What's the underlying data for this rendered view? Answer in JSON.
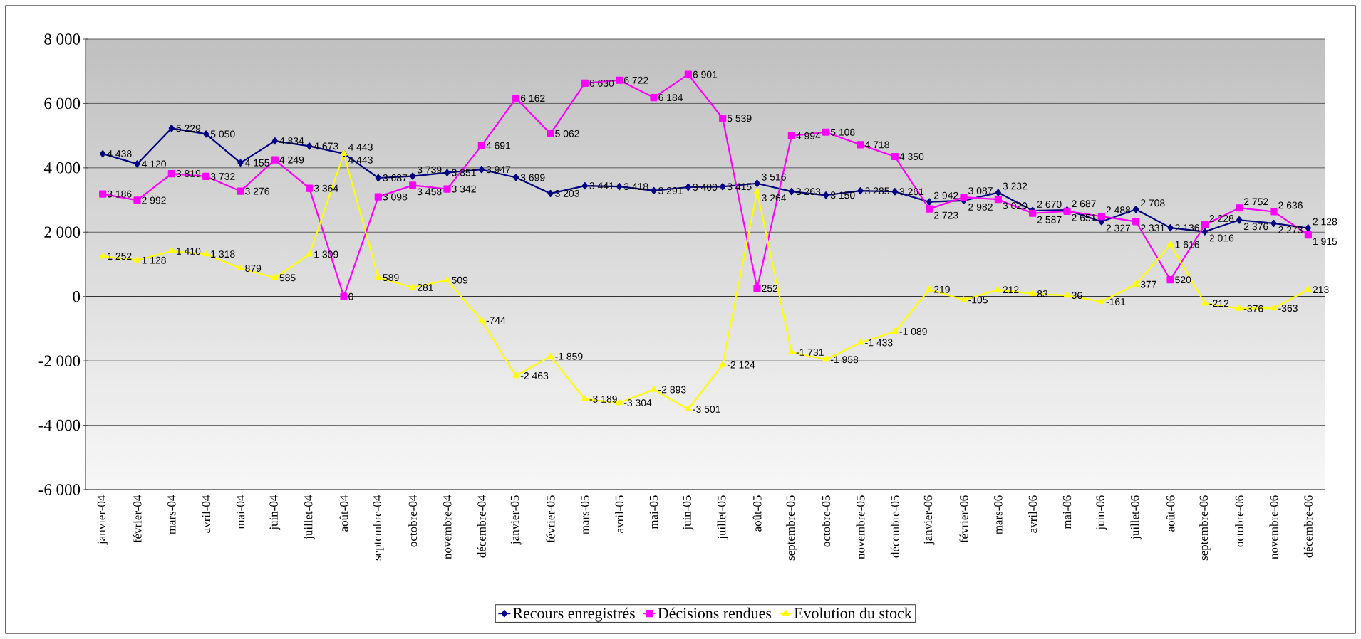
{
  "chart_data": {
    "type": "line",
    "categories": [
      "janvier-04",
      "février-04",
      "mars-04",
      "avril-04",
      "mai-04",
      "juin-04",
      "juillet-04",
      "août-04",
      "septembre-04",
      "octobre-04",
      "novembre-04",
      "décembre-04",
      "janvier-05",
      "février-05",
      "mars-05",
      "avril-05",
      "mai-05",
      "juin-05",
      "juillet-05",
      "août-05",
      "septembre-05",
      "octobre-05",
      "novembre-05",
      "décembre-05",
      "janvier-06",
      "février-06",
      "mars-06",
      "avril-06",
      "mai-06",
      "juin-06",
      "juillet-06",
      "août-06",
      "septembre-06",
      "octobre-06",
      "novembre-06",
      "décembre-06"
    ],
    "series": [
      {
        "name": "Recours enregistrés",
        "color": "#000080",
        "marker": "diamond",
        "values": [
          4438,
          4120,
          5229,
          5050,
          4155,
          4834,
          4673,
          4443,
          3687,
          3739,
          3851,
          3947,
          3699,
          3203,
          3441,
          3418,
          3291,
          3400,
          3415,
          3516,
          3263,
          3150,
          3285,
          3261,
          2942,
          2982,
          3232,
          2670,
          2687,
          2327,
          2708,
          2136,
          2016,
          2376,
          2273,
          2128
        ]
      },
      {
        "name": "Décisions rendues",
        "color": "#ff00ff",
        "marker": "square",
        "values": [
          3186,
          2992,
          3819,
          3732,
          3276,
          4249,
          3364,
          0,
          3098,
          3458,
          3342,
          4691,
          6162,
          5062,
          6630,
          6722,
          6184,
          6901,
          5539,
          252,
          4994,
          5108,
          4718,
          4350,
          2723,
          3087,
          3020,
          2587,
          2651,
          2488,
          2331,
          520,
          2228,
          2752,
          2636,
          1915
        ]
      },
      {
        "name": "Evolution du stock",
        "color": "#ffff00",
        "marker": "triangle",
        "values": [
          1252,
          1128,
          1410,
          1318,
          879,
          585,
          1309,
          4443,
          589,
          281,
          509,
          -744,
          -2463,
          -1859,
          -3189,
          -3304,
          -2893,
          -3501,
          -2124,
          3264,
          -1731,
          -1958,
          -1433,
          -1089,
          219,
          -105,
          212,
          83,
          36,
          -161,
          377,
          1616,
          -212,
          -376,
          -363,
          213
        ]
      }
    ],
    "ylim": [
      -6000,
      8000
    ],
    "yticks": [
      {
        "value": -6000,
        "label": "-6 000"
      },
      {
        "value": -4000,
        "label": "-4 000"
      },
      {
        "value": -2000,
        "label": "-2 000"
      },
      {
        "value": 0,
        "label": "0"
      },
      {
        "value": 2000,
        "label": "2 000"
      },
      {
        "value": 4000,
        "label": "4 000"
      },
      {
        "value": 6000,
        "label": "6 000"
      },
      {
        "value": 8000,
        "label": "8 000"
      }
    ],
    "grid": "y",
    "legend": "bottom",
    "data_labels": true
  }
}
